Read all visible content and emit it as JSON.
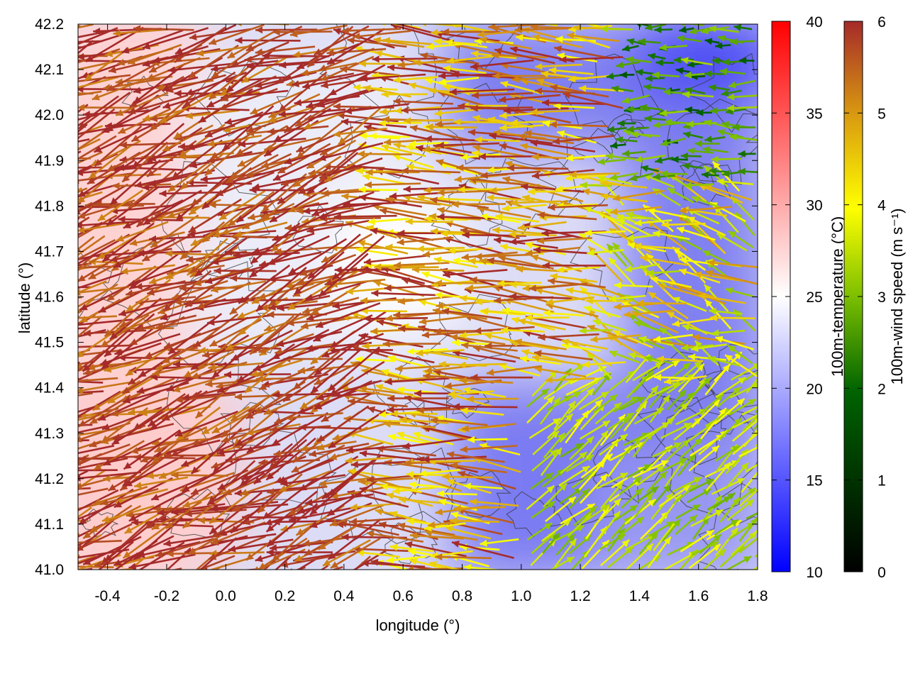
{
  "chart_data": {
    "type": "heatmap",
    "xlabel": "longitude (°)",
    "ylabel": "latitude (°)",
    "xlim": [
      -0.5,
      1.8
    ],
    "ylim": [
      41.0,
      42.2
    ],
    "xticks": [
      "-0.4",
      "-0.2",
      "0.0",
      "0.2",
      "0.4",
      "0.6",
      "0.8",
      "1.0",
      "1.2",
      "1.4",
      "1.6",
      "1.8"
    ],
    "yticks": [
      "41.0",
      "41.1",
      "41.2",
      "41.3",
      "41.4",
      "41.5",
      "41.6",
      "41.7",
      "41.8",
      "41.9",
      "42.0",
      "42.1",
      "42.2"
    ],
    "temperature_colorbar": {
      "label": "100m-temperature (°C)",
      "range": [
        10,
        40
      ],
      "ticks": [
        "10",
        "15",
        "20",
        "25",
        "30",
        "35",
        "40"
      ],
      "colors": [
        "#0000ff",
        "#ffffff",
        "#ff0000"
      ]
    },
    "wind_colorbar": {
      "label": "100m-wind speed (m s⁻¹)",
      "range": [
        0,
        6
      ],
      "ticks": [
        "0",
        "1",
        "2",
        "3",
        "4",
        "5",
        "6"
      ],
      "colors": [
        "#000000",
        "#006400",
        "#7cbf00",
        "#ffff00",
        "#d99a10",
        "#a52a2a"
      ]
    },
    "temperature_field": {
      "description_regions": [
        {
          "lon": [
            -0.5,
            0.1
          ],
          "lat": [
            41.0,
            42.2
          ],
          "temp_c": 27
        },
        {
          "lon": [
            0.1,
            0.6
          ],
          "lat": [
            41.0,
            42.2
          ],
          "temp_c": 22
        },
        {
          "lon": [
            0.7,
            1.3
          ],
          "lat": [
            41.0,
            41.4
          ],
          "temp_c": 16
        },
        {
          "lon": [
            1.3,
            1.8
          ],
          "lat": [
            41.0,
            42.2
          ],
          "temp_c": 15
        }
      ]
    },
    "wind_field": {
      "series": [
        {
          "region": "west (lon -0.5 to 0.6)",
          "direction": "west / north-west",
          "speed": 6
        },
        {
          "region": "central north (lon 0.6 to 1.4)",
          "direction": "west",
          "speed": 5
        },
        {
          "region": "south-east (lon 1.0 to 1.8, lat < 41.4)",
          "direction": "north-east",
          "speed": 2.5
        },
        {
          "region": "north-east (lon 1.4 to 1.8, lat > 41.9)",
          "direction": "west",
          "speed": 1.5
        }
      ]
    }
  }
}
